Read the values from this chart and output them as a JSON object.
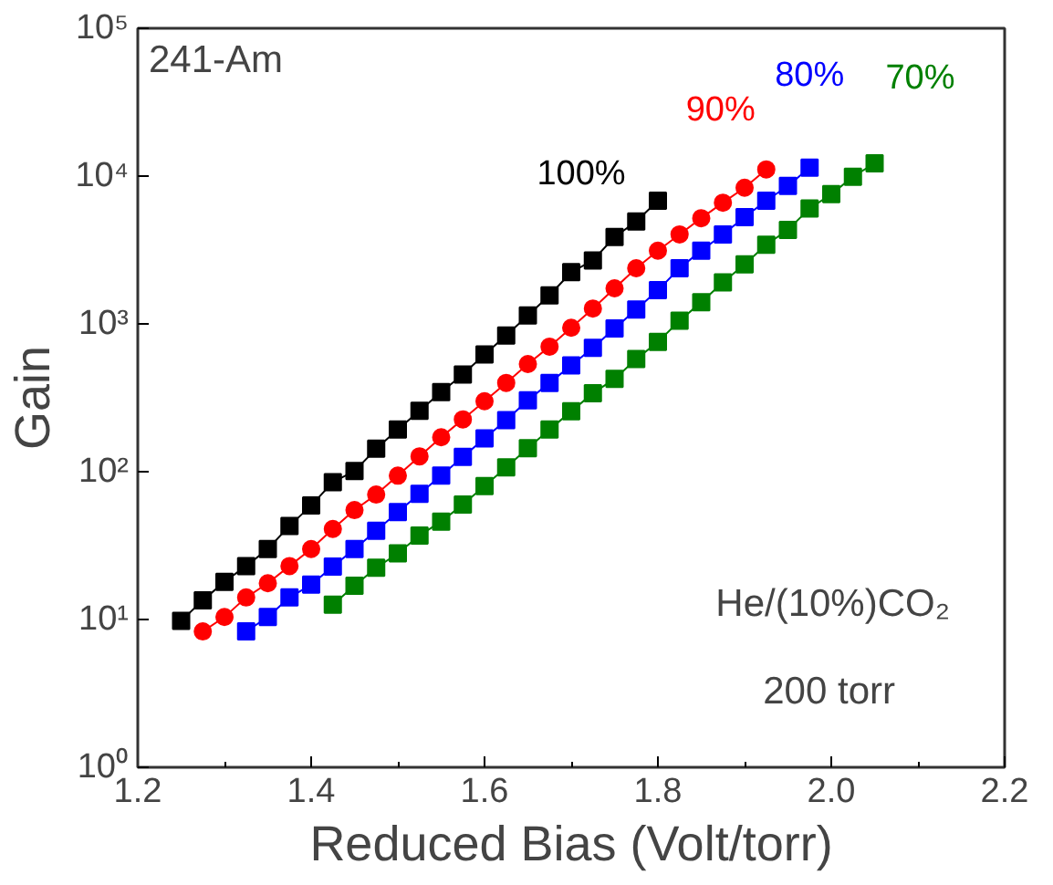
{
  "chart_data": {
    "type": "line",
    "xlabel": "Reduced Bias (Volt/torr)",
    "ylabel": "Gain",
    "log": "y",
    "marker": "square",
    "grid": false,
    "xlim": [
      1.2,
      2.2
    ],
    "xticks": [
      {
        "value": 1.2,
        "label": "1.2"
      },
      {
        "value": 1.4,
        "label": "1.4"
      },
      {
        "value": 1.6,
        "label": "1.6"
      },
      {
        "value": 1.8,
        "label": "1.8"
      },
      {
        "value": 2.0,
        "label": "2.0"
      },
      {
        "value": 2.2,
        "label": "2.2"
      }
    ],
    "ylim": [
      1,
      100000
    ],
    "yticks": [
      {
        "value": 1,
        "label": "10⁰"
      },
      {
        "value": 10,
        "label": "10¹"
      },
      {
        "value": 100,
        "label": "10²"
      },
      {
        "value": 1000,
        "label": "10³"
      },
      {
        "value": 10000,
        "label": "10⁴"
      },
      {
        "value": 100000,
        "label": "10⁵"
      }
    ],
    "annotations": [
      "241-Am",
      "He/(10%)CO₂",
      "200 torr"
    ],
    "series": [
      {
        "name": "100%",
        "color": "#000000",
        "x": [
          1.25,
          1.275,
          1.3,
          1.325,
          1.35,
          1.375,
          1.4,
          1.425,
          1.45,
          1.475,
          1.5,
          1.525,
          1.55,
          1.575,
          1.6,
          1.625,
          1.65,
          1.675,
          1.7,
          1.725,
          1.75,
          1.775,
          1.8
        ],
        "values": [
          9.8,
          13.5,
          18,
          23,
          30,
          43,
          59,
          85,
          101,
          143,
          193,
          258,
          346,
          455,
          622,
          834,
          1140,
          1560,
          2240,
          2690,
          3870,
          4930,
          6810
        ]
      },
      {
        "name": "90%",
        "color": "#ff0000",
        "marker": "circle",
        "x": [
          1.275,
          1.3,
          1.325,
          1.35,
          1.375,
          1.4,
          1.425,
          1.45,
          1.475,
          1.5,
          1.525,
          1.55,
          1.575,
          1.6,
          1.625,
          1.65,
          1.675,
          1.7,
          1.725,
          1.75,
          1.775,
          1.8,
          1.825,
          1.85,
          1.875,
          1.9,
          1.925
        ],
        "values": [
          8.3,
          10.4,
          14.1,
          17.6,
          23,
          30,
          41,
          55,
          70,
          94,
          127,
          171,
          226,
          300,
          399,
          535,
          702,
          941,
          1270,
          1740,
          2380,
          3130,
          4030,
          5190,
          6610,
          8340,
          11100
        ]
      },
      {
        "name": "80%",
        "color": "#0000ff",
        "x": [
          1.325,
          1.35,
          1.375,
          1.4,
          1.425,
          1.45,
          1.475,
          1.5,
          1.525,
          1.55,
          1.575,
          1.6,
          1.625,
          1.65,
          1.675,
          1.7,
          1.725,
          1.75,
          1.775,
          1.8,
          1.825,
          1.85,
          1.875,
          1.9,
          1.925,
          1.95,
          1.975
        ],
        "values": [
          8.3,
          10.4,
          14.1,
          17.2,
          22.8,
          30,
          39.9,
          53.4,
          70.8,
          94,
          126,
          168,
          223,
          304,
          399,
          524,
          689,
          930,
          1250,
          1690,
          2380,
          3130,
          4030,
          5270,
          6810,
          8580,
          11400
        ]
      },
      {
        "name": "70%",
        "color": "#008000",
        "x": [
          1.425,
          1.45,
          1.475,
          1.5,
          1.525,
          1.55,
          1.575,
          1.6,
          1.625,
          1.65,
          1.675,
          1.7,
          1.725,
          1.75,
          1.775,
          1.8,
          1.825,
          1.85,
          1.875,
          1.9,
          1.925,
          1.95,
          1.975,
          2.0,
          2.025,
          2.05
        ],
        "values": [
          12.6,
          16.9,
          22.4,
          28,
          37,
          46,
          60,
          80,
          107,
          144,
          193,
          256,
          340,
          424,
          579,
          754,
          1050,
          1400,
          1910,
          2530,
          3430,
          4330,
          6040,
          7540,
          9900,
          12200
        ]
      }
    ]
  }
}
